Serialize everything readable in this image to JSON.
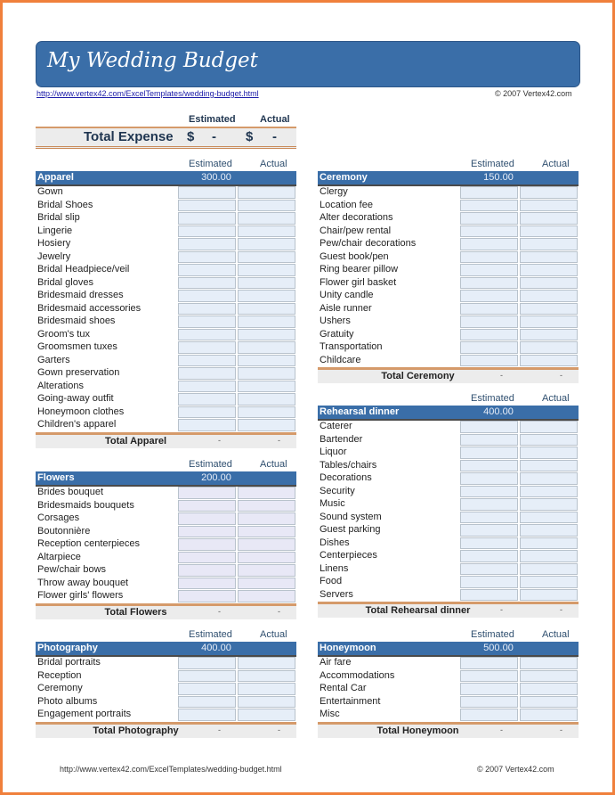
{
  "title": "My Wedding Budget",
  "link": "http://www.vertex42.com/ExcelTemplates/wedding-budget.html",
  "copyright": "© 2007 Vertex42.com",
  "total_expense": {
    "label": "Total Expense",
    "estimated_header": "Estimated",
    "actual_header": "Actual",
    "currency": "$",
    "estimated": "-",
    "actual": "-"
  },
  "column_headers": {
    "estimated": "Estimated",
    "actual": "Actual"
  },
  "colors": {
    "accent": "#3a6ea8",
    "border": "#f0803c",
    "total_rule": "#d59a6a"
  },
  "sections": [
    {
      "name": "Apparel",
      "budget": "300.00",
      "total_label": "Total Apparel",
      "total_estimated": "-",
      "total_actual": "-",
      "items": [
        "Gown",
        "Bridal Shoes",
        "Bridal slip",
        "Lingerie",
        "Hosiery",
        "Jewelry",
        "Bridal Headpiece/veil",
        "Bridal gloves",
        "Bridesmaid dresses",
        "Bridesmaid accessories",
        "Bridesmaid shoes",
        "Groom's tux",
        "Groomsmen tuxes",
        "Garters",
        "Gown preservation",
        "Alterations",
        "Going-away outfit",
        "Honeymoon clothes",
        "Children's apparel"
      ]
    },
    {
      "name": "Ceremony",
      "budget": "150.00",
      "total_label": "Total Ceremony",
      "total_estimated": "-",
      "total_actual": "-",
      "items": [
        "Clergy",
        "Location fee",
        "Alter decorations",
        "Chair/pew rental",
        "Pew/chair decorations",
        "Guest book/pen",
        "Ring bearer pillow",
        "Flower girl basket",
        "Unity candle",
        "Aisle runner",
        "Ushers",
        "Gratuity",
        "Transportation",
        "Childcare"
      ]
    },
    {
      "name": "Rehearsal dinner",
      "budget": "400.00",
      "total_label": "Total Rehearsal dinner",
      "total_estimated": "-",
      "total_actual": "-",
      "items": [
        "Caterer",
        "Bartender",
        "Liquor",
        "Tables/chairs",
        "Decorations",
        "Security",
        "Music",
        "Sound system",
        "Guest parking",
        "Dishes",
        "Centerpieces",
        "Linens",
        "Food",
        "Servers"
      ]
    },
    {
      "name": "Flowers",
      "budget": "200.00",
      "total_label": "Total Flowers",
      "total_estimated": "-",
      "total_actual": "-",
      "items": [
        "Brides bouquet",
        "Bridesmaids bouquets",
        "Corsages",
        "Boutonnière",
        "Reception centerpieces",
        "Altarpiece",
        "Pew/chair bows",
        "Throw away bouquet",
        "Flower girls' flowers"
      ]
    },
    {
      "name": "Photography",
      "budget": "400.00",
      "total_label": "Total Photography",
      "total_estimated": "-",
      "total_actual": "-",
      "items": [
        "Bridal portraits",
        "Reception",
        "Ceremony",
        "Photo albums",
        "Engagement portraits"
      ]
    },
    {
      "name": "Honeymoon",
      "budget": "500.00",
      "total_label": "Total Honeymoon",
      "total_estimated": "-",
      "total_actual": "-",
      "items": [
        "Air fare",
        "Accommodations",
        "Rental Car",
        "Entertainment",
        "Misc"
      ]
    }
  ]
}
